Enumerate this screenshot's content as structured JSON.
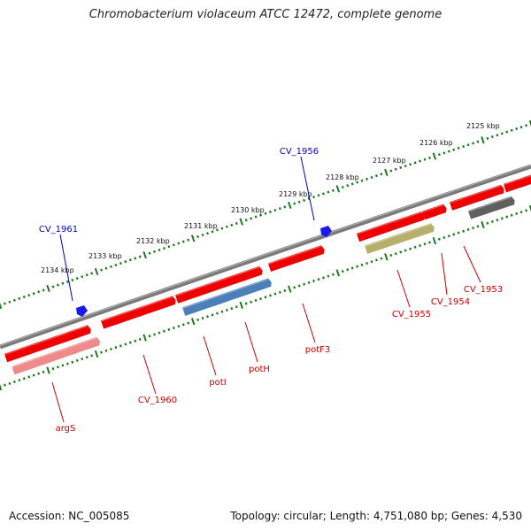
{
  "title": "Chromobacterium violaceum ATCC 12472, complete genome",
  "footer": {
    "accession": "Accession: NC_005085",
    "topology": "Topology: circular; Length: 4,751,080 bp; Genes: 4,530"
  },
  "colors": {
    "backbone": "#7a7a7a",
    "ruler_ticks": "#1e7a1e",
    "gene_red": "#ee0000",
    "gene_pink": "#ef8a8a",
    "gene_blue": "#4a7fb8",
    "gene_olive": "#b7b06a",
    "gene_gray": "#606060",
    "marker_blue": "#1a1aee",
    "label_red": "#cc0000",
    "label_blue": "#0000cc"
  },
  "ruler_labels": [
    "2125 kbp",
    "2126 kbp",
    "2127 kbp",
    "2128 kbp",
    "2129 kbp",
    "2130 kbp",
    "2131 kbp",
    "2132 kbp",
    "2133 kbp",
    "2134 kbp"
  ],
  "gene_labels_below": [
    "argS",
    "CV_1960",
    "potI",
    "potH",
    "potF3",
    "CV_1955",
    "CV_1954",
    "CV_1953"
  ],
  "gene_labels_above": [
    "CV_1961",
    "CV_1956"
  ]
}
